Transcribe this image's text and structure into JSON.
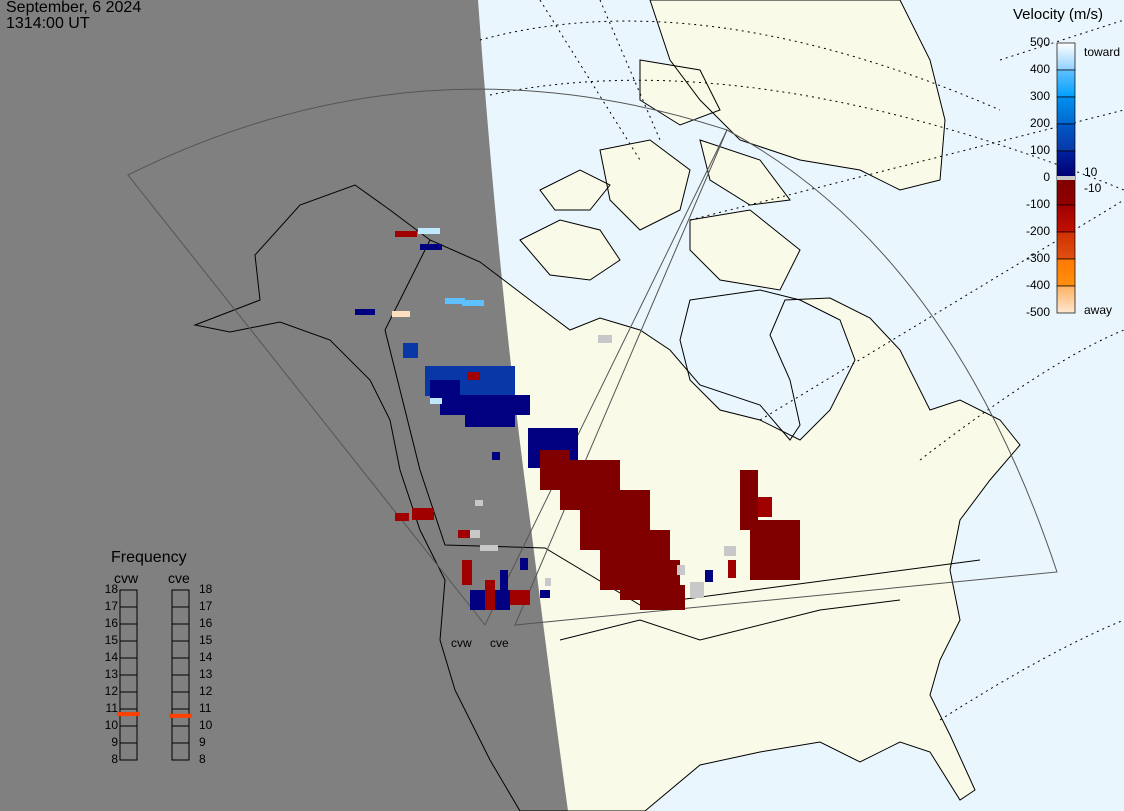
{
  "header": {
    "date": "September, 6 2024",
    "time": "1314:00 UT"
  },
  "colorbar": {
    "title": "Velocity (m/s)",
    "ticks": [
      "500",
      "400",
      "300",
      "200",
      "100",
      "0",
      "-100",
      "-200",
      "-300",
      "-400",
      "-500"
    ],
    "toward_label": "toward",
    "away_label": "away",
    "ground_scatter_upper": "10",
    "ground_scatter_lower": "-10",
    "range": [
      -500,
      500
    ],
    "colors": [
      "#fde0c0",
      "#ffb060",
      "#ff8800",
      "#e05010",
      "#c02000",
      "#a00000",
      "#800000",
      "#000080",
      "#0838a8",
      "#0060d0",
      "#0090f0",
      "#60c0ff",
      "#c0e8ff"
    ],
    "ground_scatter_color": "#c8c8c8"
  },
  "frequency": {
    "title": "Frequency",
    "unit_range": [
      8,
      18
    ],
    "ticks": [
      "18",
      "17",
      "16",
      "15",
      "14",
      "13",
      "12",
      "11",
      "10",
      "9",
      "8"
    ],
    "radars": [
      {
        "name": "cvw",
        "freq_mhz": 10.7
      },
      {
        "name": "cve",
        "freq_mhz": 10.6
      }
    ],
    "marker_color": "#ff4000"
  },
  "map": {
    "radar_labels": [
      "cvw",
      "cve"
    ],
    "ocean_color": "#eaf6fd",
    "land_color": "#fafae8",
    "night_color": "#808080"
  }
}
